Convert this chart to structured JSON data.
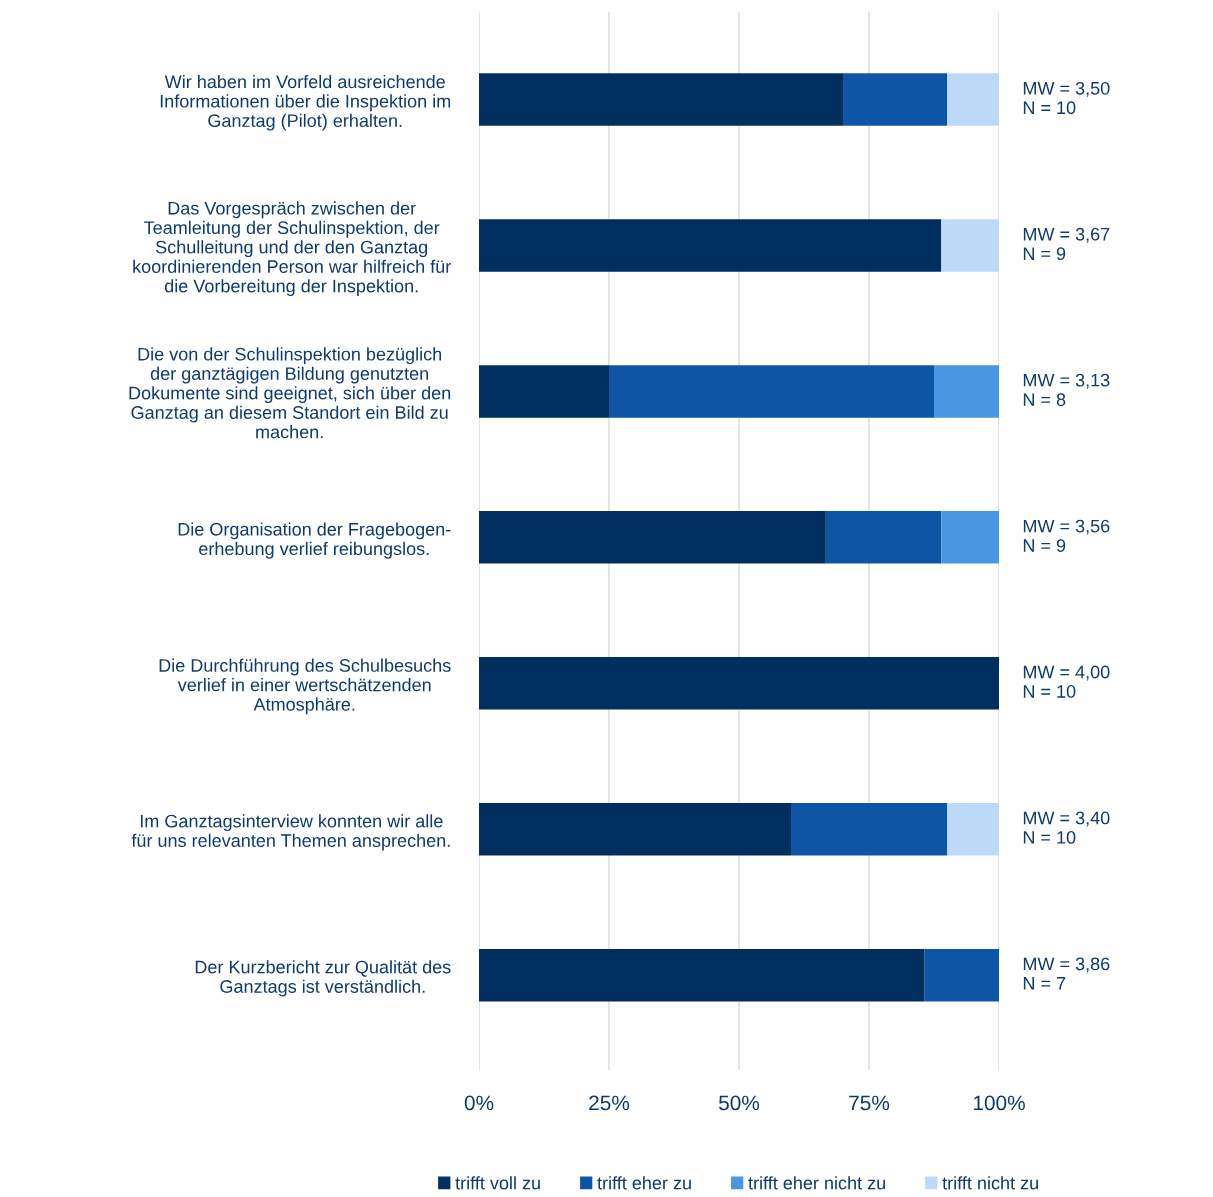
{
  "chart_data": {
    "type": "bar",
    "orientation": "horizontal",
    "stacked": true,
    "categories": [
      "Wir haben im Vorfeld ausreichende\nInformationen über die Inspektion im\nGanztag (Pilot) erhalten.",
      "Das Vorgespräch zwischen der\nTeamleitung der Schulinspektion, der\nSchulleitung und der den Ganztag\nkoordinierenden Person war hilfreich für\ndie Vorbereitung der Inspektion.",
      "Die von der Schulinspektion bezüglich\nder ganztägigen Bildung genutzten\nDokumente sind geeignet, sich über den\nGanztag an diesem Standort ein Bild zu\nmachen.",
      "Die Organisation der Fragebogen-\nerhebung verlief reibungslos.",
      "Die Durchführung des Schulbesuchs\nverlief in einer wertschätzenden\nAtmosphäre.",
      "Im Ganztagsinterview konnten wir alle\nfür uns relevanten Themen ansprechen.",
      "Der Kurzbericht zur Qualität des\nGanztags ist verständlich."
    ],
    "series": [
      {
        "name": "trifft voll zu",
        "color": "#002f5f",
        "values": [
          70,
          88.9,
          25,
          66.7,
          100,
          60,
          85.7
        ]
      },
      {
        "name": "trifft eher zu",
        "color": "#0e56a5",
        "values": [
          20,
          0,
          62.5,
          22.2,
          0,
          30,
          14.3
        ]
      },
      {
        "name": "trifft eher nicht zu",
        "color": "#4a96e2",
        "values": [
          0,
          0,
          12.5,
          11.1,
          0,
          0,
          0
        ]
      },
      {
        "name": "trifft nicht zu",
        "color": "#bcdaf8",
        "values": [
          10,
          11.1,
          0,
          0,
          0,
          10,
          0
        ]
      }
    ],
    "xlim": [
      0,
      100
    ],
    "xticks": [
      {
        "value": 0,
        "label": "0%"
      },
      {
        "value": 25,
        "label": "25%"
      },
      {
        "value": 50,
        "label": "50%"
      },
      {
        "value": 75,
        "label": "75%"
      },
      {
        "value": 100,
        "label": "100%"
      }
    ],
    "grid": "x",
    "legend": "bottom",
    "annotations": [
      "MW = 3,50\nN = 10",
      "MW = 3,67\nN = 9",
      "MW = 3,13\nN = 8",
      "MW = 3,56\nN = 9",
      "MW = 4,00\nN = 10",
      "MW = 3,40\nN = 10",
      "MW = 3,86\nN = 7"
    ]
  }
}
